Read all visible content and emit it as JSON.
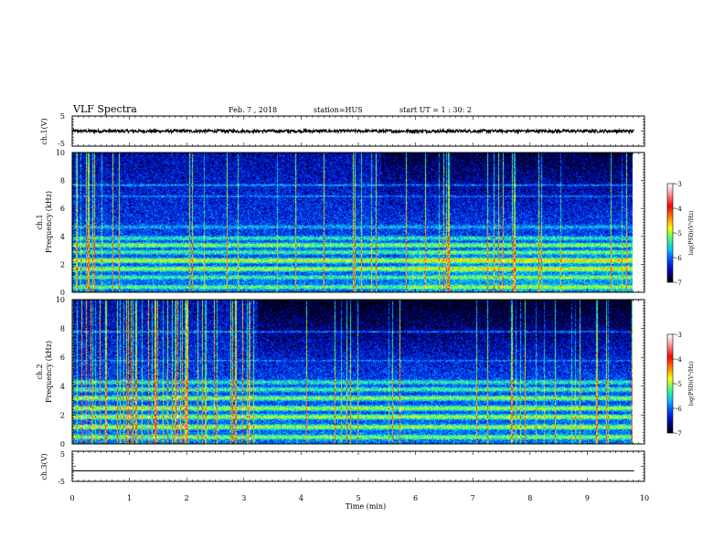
{
  "header": {
    "title": "VLF Spectra",
    "date": "Feb. 7 , 2018",
    "station": "station=HUS",
    "start": "start UT = 1 : 30: 2"
  },
  "chart_data": [
    {
      "type": "line",
      "name": "waveform-ch1",
      "ylabel": "ch.1(V)",
      "ylim": [
        -5,
        5
      ],
      "yticks": [
        "5",
        "-5"
      ],
      "series": [
        {
          "description": "noisy trace near 0 V",
          "values": [
            0,
            0
          ]
        }
      ]
    },
    {
      "type": "heatmap",
      "name": "spectrogram-ch1",
      "ylabel_top": "ch.1",
      "ylabel": "Frequency (kHz)",
      "ylim": [
        0,
        10
      ],
      "yticks": [
        "0",
        "2",
        "4",
        "6",
        "8",
        "10"
      ],
      "colorbar": {
        "label": "log(PSD)(V²/Hz)",
        "range": [
          -7,
          -3
        ],
        "ticks": [
          "-3",
          "-4",
          "-5",
          "-6",
          "-7"
        ],
        "colors": [
          "#000000",
          "#0000a0",
          "#0040ff",
          "#00c0ff",
          "#40ff80",
          "#ffff00",
          "#ff8000",
          "#ff0000",
          "#ff9090",
          "#ffffff"
        ]
      },
      "bands_khz": [
        0.4,
        1.1,
        1.7,
        2.3,
        2.9,
        3.4,
        3.9,
        4.7,
        6.9,
        7.7
      ],
      "band_levels": [
        -5.2,
        -5.3,
        -5.0,
        -4.9,
        -5.3,
        -5.1,
        -5.4,
        -5.7,
        -5.8,
        -5.7
      ]
    },
    {
      "type": "heatmap",
      "name": "spectrogram-ch2",
      "ylabel_top": "ch.2",
      "ylabel": "Frequency (kHz)",
      "ylim": [
        0,
        10
      ],
      "yticks": [
        "0",
        "2",
        "4",
        "6",
        "8",
        "10"
      ],
      "colorbar": {
        "label": "log(PSD)(V²/Hz)",
        "range": [
          -7,
          -3
        ],
        "ticks": [
          "-3",
          "-4",
          "-5",
          "-6",
          "-7"
        ],
        "colors": [
          "#000000",
          "#0000a0",
          "#0040ff",
          "#00c0ff",
          "#40ff80",
          "#ffff00",
          "#ff8000",
          "#ff0000",
          "#ff9090",
          "#ffffff"
        ]
      },
      "bands_khz": [
        0.5,
        1.2,
        1.9,
        2.5,
        3.2,
        3.8,
        4.3,
        5.8,
        7.8
      ],
      "band_levels": [
        -5.1,
        -5.0,
        -5.0,
        -5.0,
        -5.1,
        -5.3,
        -5.4,
        -5.8,
        -5.7
      ]
    },
    {
      "type": "line",
      "name": "waveform-ch3",
      "ylabel": "ch.3(V)",
      "ylim": [
        -5,
        5
      ],
      "yticks": [
        "5",
        "-5"
      ],
      "series": [
        {
          "description": "flat line slightly below 0 V",
          "values": [
            -1.5,
            -1.5
          ]
        }
      ]
    }
  ],
  "xaxis": {
    "label": "Time (min)",
    "range": [
      0,
      10
    ],
    "ticks": [
      "0",
      "1",
      "2",
      "3",
      "4",
      "5",
      "6",
      "7",
      "8",
      "9",
      "10"
    ],
    "data_end_min": 9.82
  }
}
